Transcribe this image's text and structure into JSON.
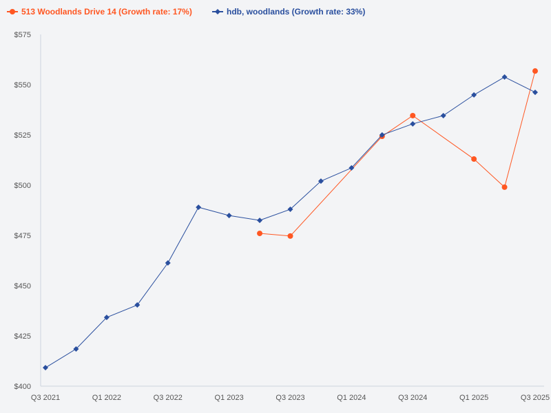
{
  "chart_data": {
    "type": "line",
    "title": "",
    "xlabel": "",
    "ylabel": "",
    "ylim": [
      400,
      575
    ],
    "yticks": [
      "$400",
      "$425",
      "$450",
      "$475",
      "$500",
      "$525",
      "$550",
      "$575"
    ],
    "ytick_values": [
      400,
      425,
      450,
      475,
      500,
      525,
      550,
      575
    ],
    "categories": [
      "Q3 2021",
      "Q4 2021",
      "Q1 2022",
      "Q2 2022",
      "Q3 2022",
      "Q4 2022",
      "Q1 2023",
      "Q2 2023",
      "Q3 2023",
      "Q4 2023",
      "Q1 2024",
      "Q2 2024",
      "Q3 2024",
      "Q4 2024",
      "Q1 2025",
      "Q2 2025",
      "Q3 2025"
    ],
    "xtick_labels": [
      "Q3 2021",
      "Q1 2022",
      "Q3 2022",
      "Q1 2023",
      "Q3 2023",
      "Q1 2024",
      "Q3 2024",
      "Q1 2025",
      "Q3 2025"
    ],
    "grid": false,
    "legend_position": "top-left",
    "series": [
      {
        "name": "513 Woodlands Drive 14 (Growth rate: 17%)",
        "color": "#ff5722",
        "marker": "circle",
        "values": [
          null,
          null,
          null,
          null,
          null,
          null,
          null,
          476,
          474.7,
          null,
          null,
          524.3,
          534.6,
          null,
          513,
          499,
          556.8
        ]
      },
      {
        "name": "hdb, woodlands (Growth rate: 33%)",
        "color": "#2a4f9e",
        "marker": "diamond",
        "values": [
          409.2,
          418.5,
          434.2,
          440.4,
          461.3,
          489,
          484.9,
          482.5,
          488,
          502,
          508.6,
          525,
          530.5,
          534.6,
          544.9,
          553.8,
          546.2
        ]
      }
    ]
  }
}
